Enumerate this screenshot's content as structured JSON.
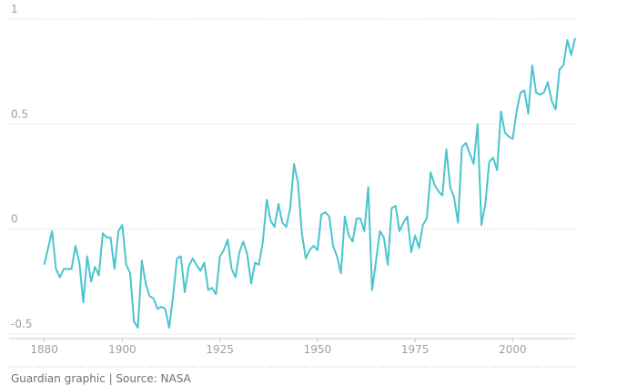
{
  "chart_data": {
    "type": "line",
    "x": [
      1880,
      1881,
      1882,
      1883,
      1884,
      1885,
      1886,
      1887,
      1888,
      1889,
      1890,
      1891,
      1892,
      1893,
      1894,
      1895,
      1896,
      1897,
      1898,
      1899,
      1900,
      1901,
      1902,
      1903,
      1904,
      1905,
      1906,
      1907,
      1908,
      1909,
      1910,
      1911,
      1912,
      1913,
      1914,
      1915,
      1916,
      1917,
      1918,
      1919,
      1920,
      1921,
      1922,
      1923,
      1924,
      1925,
      1926,
      1927,
      1928,
      1929,
      1930,
      1931,
      1932,
      1933,
      1934,
      1935,
      1936,
      1937,
      1938,
      1939,
      1940,
      1941,
      1942,
      1943,
      1944,
      1945,
      1946,
      1947,
      1948,
      1949,
      1950,
      1951,
      1952,
      1953,
      1954,
      1955,
      1956,
      1957,
      1958,
      1959,
      1960,
      1961,
      1962,
      1963,
      1964,
      1965,
      1966,
      1967,
      1968,
      1969,
      1970,
      1971,
      1972,
      1973,
      1974,
      1975,
      1976,
      1977,
      1978,
      1979,
      1980,
      1981,
      1982,
      1983,
      1984,
      1985,
      1986,
      1987,
      1988,
      1989,
      1990,
      1991,
      1992,
      1993,
      1994,
      1995,
      1996,
      1997,
      1998,
      1999,
      2000,
      2001,
      2002,
      2003,
      2004,
      2005,
      2006,
      2007,
      2008,
      2009,
      2010,
      2011,
      2012,
      2013,
      2014,
      2015,
      2016
    ],
    "values": [
      -0.17,
      -0.09,
      -0.01,
      -0.19,
      -0.23,
      -0.19,
      -0.19,
      -0.19,
      -0.08,
      -0.16,
      -0.35,
      -0.13,
      -0.25,
      -0.18,
      -0.22,
      -0.02,
      -0.04,
      -0.04,
      -0.19,
      -0.01,
      0.02,
      -0.17,
      -0.21,
      -0.44,
      -0.47,
      -0.15,
      -0.26,
      -0.32,
      -0.33,
      -0.38,
      -0.37,
      -0.38,
      -0.47,
      -0.32,
      -0.14,
      -0.13,
      -0.3,
      -0.18,
      -0.14,
      -0.17,
      -0.2,
      -0.16,
      -0.29,
      -0.28,
      -0.31,
      -0.13,
      -0.1,
      -0.05,
      -0.19,
      -0.23,
      -0.11,
      -0.06,
      -0.12,
      -0.26,
      -0.16,
      -0.17,
      -0.06,
      0.14,
      0.04,
      0.01,
      0.12,
      0.03,
      0.01,
      0.1,
      0.31,
      0.22,
      -0.02,
      -0.14,
      -0.1,
      -0.08,
      -0.1,
      0.07,
      0.08,
      0.06,
      -0.08,
      -0.13,
      -0.21,
      0.06,
      -0.03,
      -0.06,
      0.05,
      0.05,
      -0.01,
      0.2,
      -0.29,
      -0.15,
      -0.01,
      -0.04,
      -0.17,
      0.1,
      0.11,
      -0.01,
      0.03,
      0.06,
      -0.11,
      -0.03,
      -0.09,
      0.02,
      0.05,
      0.27,
      0.21,
      0.18,
      0.16,
      0.38,
      0.2,
      0.15,
      0.03,
      0.39,
      0.41,
      0.36,
      0.31,
      0.5,
      0.02,
      0.12,
      0.32,
      0.34,
      0.28,
      0.56,
      0.46,
      0.44,
      0.43,
      0.56,
      0.65,
      0.66,
      0.55,
      0.78,
      0.65,
      0.64,
      0.65,
      0.7,
      0.61,
      0.57,
      0.76,
      0.78,
      0.9,
      0.83,
      0.91
    ],
    "color": "#4bc4cf",
    "xlim": [
      1871,
      2016
    ],
    "xticks": [
      1880,
      1900,
      1925,
      1950,
      1975,
      2000
    ],
    "ylim": [
      -0.5,
      1
    ],
    "yticks": [
      -0.5,
      0,
      0.5,
      1
    ],
    "grid": true,
    "footer": "Guardian graphic | Source: NASA"
  }
}
